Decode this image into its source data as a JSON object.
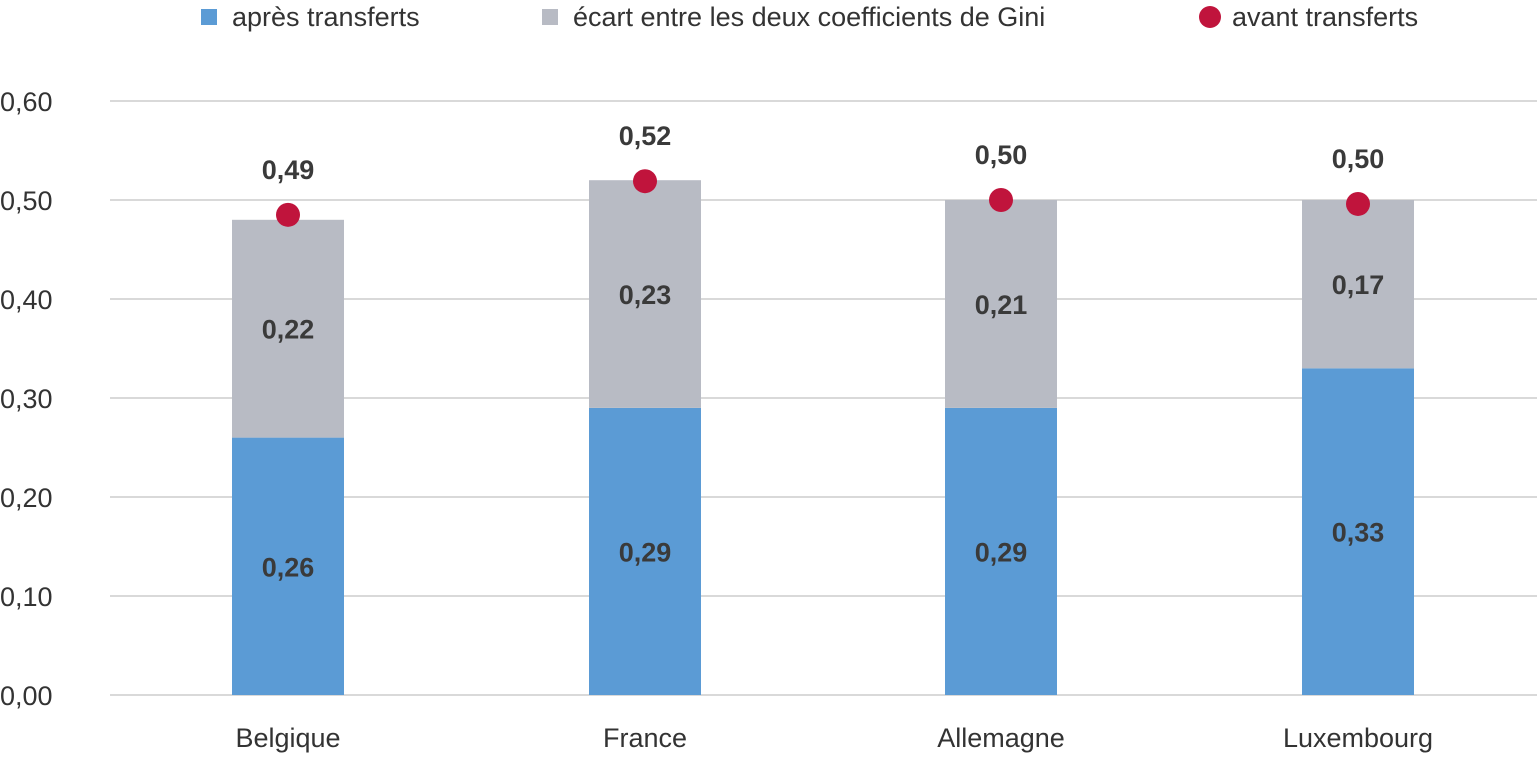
{
  "chart_data": {
    "type": "bar",
    "stacked": true,
    "categories": [
      "Belgique",
      "France",
      "Allemagne",
      "Luxembourg"
    ],
    "series": [
      {
        "name": "après transferts",
        "kind": "bar",
        "color": "#5b9bd5",
        "values": [
          0.26,
          0.29,
          0.29,
          0.33
        ],
        "labels": [
          "0,26",
          "0,29",
          "0,29",
          "0,33"
        ]
      },
      {
        "name": "écart entre les deux coefficients de Gini",
        "kind": "bar",
        "color": "#b8bbc4",
        "values": [
          0.22,
          0.23,
          0.21,
          0.17
        ],
        "labels": [
          "0,22",
          "0,23",
          "0,21",
          "0,17"
        ]
      },
      {
        "name": "avant transferts",
        "kind": "point",
        "color": "#c0143c",
        "values": [
          0.485,
          0.519,
          0.5,
          0.496
        ],
        "labels": [
          "0,49",
          "0,52",
          "0,50",
          "0,50"
        ]
      }
    ],
    "ylim": [
      0,
      0.6
    ],
    "yticks": [
      0,
      0.1,
      0.2,
      0.3,
      0.4,
      0.5,
      0.6
    ],
    "ytick_labels": [
      "0,00",
      "0,10",
      "0,20",
      "0,30",
      "0,40",
      "0,50",
      "0,60"
    ],
    "grid": true,
    "legend_position": "top",
    "title": "",
    "xlabel": "",
    "ylabel": ""
  }
}
